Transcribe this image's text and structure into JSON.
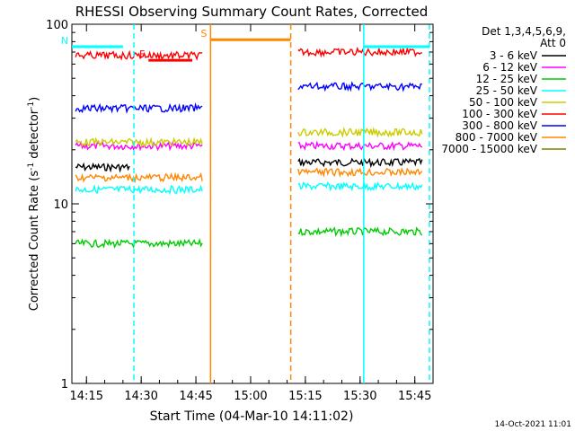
{
  "chart_data": {
    "type": "line",
    "title": "RHESSI Observing Summary Count Rates, Corrected",
    "xlabel": "Start Time (04-Mar-10 14:11:02)",
    "ylabel_main": "Corrected Count Rate (s",
    "ylabel_sup1": "-1",
    "ylabel_mid": " detector",
    "ylabel_sup2": "-1",
    "ylabel_end": ")",
    "yscale": "log",
    "ylim": [
      1,
      100
    ],
    "xlim": [
      "14:11",
      "15:50"
    ],
    "x_ticks": [
      "14:15",
      "14:30",
      "14:45",
      "15:00",
      "15:15",
      "15:30",
      "15:45"
    ],
    "y_ticks": [
      "1",
      "10",
      "100"
    ],
    "legend_title": "Det 1,3,4,5,6,9,",
    "legend_subtitle": "Att 0",
    "legend_position": "top-right",
    "footer_date": "14-Oct-2021 11:01",
    "series": [
      {
        "name": "3 - 6 keV",
        "color": "#000000",
        "segments": [
          {
            "x": [
              "14:12",
              "14:27"
            ],
            "y": 16
          },
          {
            "x": [
              "15:13",
              "15:47"
            ],
            "y": 17
          }
        ]
      },
      {
        "name": "6 - 12 keV",
        "color": "#ff00ff",
        "segments": [
          {
            "x": [
              "14:12",
              "14:47"
            ],
            "y": 21
          },
          {
            "x": [
              "15:13",
              "15:47"
            ],
            "y": 21
          }
        ]
      },
      {
        "name": "12 - 25 keV",
        "color": "#00cc00",
        "segments": [
          {
            "x": [
              "14:12",
              "14:47"
            ],
            "y": 6
          },
          {
            "x": [
              "15:13",
              "15:47"
            ],
            "y": 7
          }
        ]
      },
      {
        "name": "25 - 50 keV",
        "color": "#00ffff",
        "segments": [
          {
            "x": [
              "14:12",
              "14:47"
            ],
            "y": 12
          },
          {
            "x": [
              "15:13",
              "15:47"
            ],
            "y": 12.5
          }
        ]
      },
      {
        "name": "50 - 100 keV",
        "color": "#cccc00",
        "segments": [
          {
            "x": [
              "14:12",
              "14:47"
            ],
            "y": 22
          },
          {
            "x": [
              "15:13",
              "15:47"
            ],
            "y": 25
          }
        ]
      },
      {
        "name": "100 - 300 keV",
        "color": "#ff0000",
        "segments": [
          {
            "x": [
              "14:12",
              "14:47"
            ],
            "y": 67
          },
          {
            "x": [
              "15:13",
              "15:47"
            ],
            "y": 70
          }
        ]
      },
      {
        "name": "300 - 800 keV",
        "color": "#0000ff",
        "segments": [
          {
            "x": [
              "14:12",
              "14:47"
            ],
            "y": 34
          },
          {
            "x": [
              "15:13",
              "15:47"
            ],
            "y": 45
          }
        ]
      },
      {
        "name": "800 - 7000 keV",
        "color": "#ff8800",
        "segments": [
          {
            "x": [
              "14:12",
              "14:47"
            ],
            "y": 14
          },
          {
            "x": [
              "15:13",
              "15:47"
            ],
            "y": 15
          }
        ]
      },
      {
        "name": "7000 - 15000 keV",
        "color": "#808000",
        "segments": []
      }
    ],
    "flag_bars": [
      {
        "label": "N",
        "color": "#00ffff",
        "x": [
          "14:11",
          "14:25"
        ],
        "y": 75
      },
      {
        "label": "",
        "color": "#00ffff",
        "x": [
          "15:31",
          "15:49"
        ],
        "y": 75
      },
      {
        "label": "F",
        "color": "#ff0000",
        "x": [
          "14:32",
          "14:44"
        ],
        "y": 63
      },
      {
        "label": "S",
        "color": "#ff8800",
        "x": [
          "14:49",
          "15:11"
        ],
        "y": 82
      }
    ],
    "vertical_lines": [
      {
        "x": "14:28",
        "color": "#00ffff",
        "style": "dashed"
      },
      {
        "x": "14:49",
        "color": "#ff8800",
        "style": "solid"
      },
      {
        "x": "15:11",
        "color": "#ff8800",
        "style": "dashed"
      },
      {
        "x": "15:31",
        "color": "#00ffff",
        "style": "solid"
      },
      {
        "x": "15:49",
        "color": "#00ffff",
        "style": "dashed"
      }
    ]
  }
}
